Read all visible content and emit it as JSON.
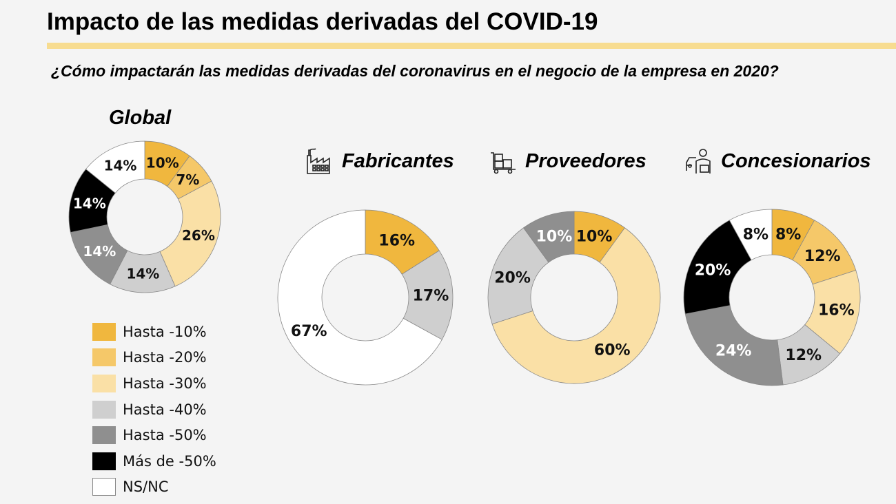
{
  "title": "Impacto de las medidas derivadas del COVID-19",
  "subtitle": "¿Cómo impactarán las medidas derivadas del coronavirus en el negocio de la empresa en 2020?",
  "colors": {
    "Hasta -10%": "#f0b73e",
    "Hasta -20%": "#f5c869",
    "Hasta -30%": "#fae0a6",
    "Hasta -40%": "#cfcfcf",
    "Hasta -50%": "#8f8f8f",
    "Más de -50%": "#000000",
    "NS/NC": "#ffffff"
  },
  "legend": {
    "position": "bottom-left",
    "items": [
      "Hasta -10%",
      "Hasta -20%",
      "Hasta -30%",
      "Hasta -40%",
      "Hasta -50%",
      "Más de -50%",
      "NS/NC"
    ]
  },
  "chart_data": [
    {
      "type": "pie",
      "donut": true,
      "title": "Global",
      "icon": "",
      "categories": [
        "Hasta -10%",
        "Hasta -20%",
        "Hasta -30%",
        "Hasta -40%",
        "Hasta -50%",
        "Más de -50%",
        "NS/NC"
      ],
      "values": [
        10,
        7,
        26,
        14,
        14,
        14,
        14
      ],
      "labels": [
        "10%",
        "7%",
        "26%",
        "14%",
        "14%",
        "14%",
        "14%"
      ]
    },
    {
      "type": "pie",
      "donut": true,
      "title": "Fabricantes",
      "icon": "factory-icon",
      "categories": [
        "Hasta -10%",
        "Hasta -40%",
        "NS/NC"
      ],
      "values": [
        16,
        17,
        67
      ],
      "labels": [
        "16%",
        "17%",
        "67%"
      ]
    },
    {
      "type": "pie",
      "donut": true,
      "title": "Proveedores",
      "icon": "forklift-boxes-icon",
      "categories": [
        "Hasta -10%",
        "Hasta -30%",
        "Hasta -40%",
        "Hasta -50%"
      ],
      "values": [
        10,
        60,
        20,
        10
      ],
      "labels": [
        "10%",
        "60%",
        "20%",
        "10%"
      ]
    },
    {
      "type": "pie",
      "donut": true,
      "title": "Concesionarios",
      "icon": "car-dealer-icon",
      "categories": [
        "Hasta -10%",
        "Hasta -20%",
        "Hasta -30%",
        "Hasta -40%",
        "Hasta -50%",
        "Más de -50%",
        "NS/NC"
      ],
      "values": [
        8,
        12,
        16,
        12,
        24,
        20,
        8
      ],
      "labels": [
        "8%",
        "12%",
        "16%",
        "12%",
        "24%",
        "20%",
        "8%"
      ]
    }
  ]
}
